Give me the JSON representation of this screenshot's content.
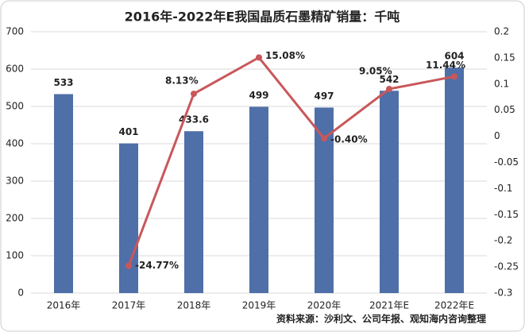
{
  "chart_data": {
    "type": "combo",
    "title": "2016年-2022年E我国晶质石墨精矿销量：千吨",
    "source": "资料来源：沙利文、公司年报、观知海内咨询整理",
    "categories": [
      "2016年",
      "2017年",
      "2018年",
      "2019年",
      "2020年",
      "2021年E",
      "2022年E"
    ],
    "series": [
      {
        "type": "bar",
        "color": "#4f6fa8",
        "values": [
          533,
          401,
          433.6,
          499,
          497,
          542,
          604
        ]
      },
      {
        "type": "line",
        "axis": "y2",
        "color": "#c9575a",
        "values": [
          null,
          -0.2477,
          0.0813,
          0.1508,
          -0.004,
          0.0905,
          0.1144
        ],
        "value_labels": [
          null,
          "-24.77%",
          "8.13%",
          "15.08%",
          "-0.40%",
          "9.05%",
          "11.44%"
        ]
      }
    ],
    "ylim": [
      0,
      700
    ],
    "yticks": [
      0,
      100,
      200,
      300,
      400,
      500,
      600,
      700
    ],
    "y2lim": [
      -0.3,
      0.2
    ],
    "y2ticks": [
      -0.3,
      -0.25,
      -0.2,
      -0.15,
      -0.1,
      -0.05,
      0,
      0.05,
      0.1,
      0.15,
      0.2
    ],
    "grid": true
  }
}
